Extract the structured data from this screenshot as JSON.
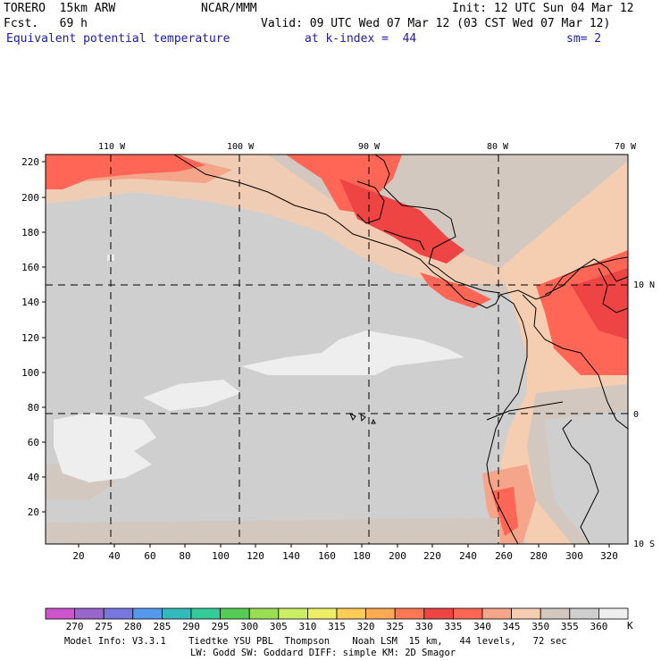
{
  "header": {
    "model": "TORERO  15km ARW",
    "center": "NCAR/MMM",
    "init": "Init: 12 UTC Sun 04 Mar 12",
    "fcst_label": "Fcst.   69 h",
    "valid": "Valid: 09 UTC Wed 07 Mar 12 (03 CST Wed 07 Mar 12)",
    "field": "Equivalent potential temperature",
    "level": "at k-index =  44",
    "smoothing": "sm= 2"
  },
  "map": {
    "lon_labels": [
      "110 W",
      "100 W",
      "90 W",
      "80 W",
      "70 W"
    ],
    "lat_labels": [
      "10 N",
      "0",
      "10 S"
    ],
    "y_ticks": [
      "220",
      "200",
      "180",
      "160",
      "140",
      "120",
      "100",
      "80",
      "60",
      "40",
      "20"
    ],
    "x_ticks": [
      "20",
      "40",
      "60",
      "80",
      "100",
      "120",
      "140",
      "160",
      "180",
      "200",
      "220",
      "240",
      "260",
      "280",
      "300",
      "320"
    ]
  },
  "colorbar": {
    "unit": "K",
    "labels": [
      "270",
      "275",
      "280",
      "285",
      "290",
      "295",
      "300",
      "305",
      "310",
      "315",
      "320",
      "325",
      "330",
      "335",
      "340",
      "345",
      "350",
      "355",
      "360"
    ],
    "colors": [
      "#cc55cc",
      "#9966cc",
      "#7777dd",
      "#5599ee",
      "#33bbbb",
      "#33cc99",
      "#55cc55",
      "#99dd55",
      "#ccee66",
      "#eeee66",
      "#ffcc55",
      "#ffaa55",
      "#ff7755",
      "#ee4444",
      "#ff6655",
      "#f4a58a",
      "#f5cdb0",
      "#d2c8c0",
      "#cfcfcf",
      "#eeeeee"
    ]
  },
  "footer": {
    "line1": "Model Info: V3.3.1    Tiedtke YSU PBL  Thompson    Noah LSM  15 km,   44 levels,   72 sec",
    "line2": "LW: Godd SW: Goddard DIFF: simple KM: 2D Smagor"
  }
}
